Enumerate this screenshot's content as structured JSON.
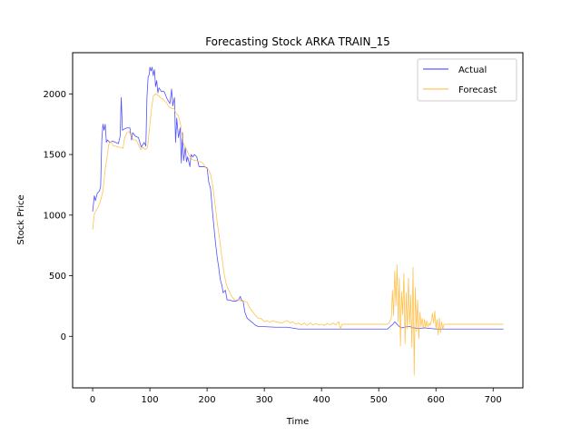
{
  "chart_data": {
    "type": "line",
    "title": "Forecasting Stock ARKA TRAIN_15",
    "xlabel": "Time",
    "ylabel": "Stock Price",
    "xlim": [
      -35,
      752
    ],
    "ylim": [
      -425,
      2340
    ],
    "xticks": [
      0,
      100,
      200,
      300,
      400,
      500,
      600,
      700
    ],
    "yticks": [
      0,
      500,
      1000,
      1500,
      2000
    ],
    "grid": false,
    "legend_position": "top-right",
    "series": [
      {
        "name": "Actual",
        "color": "#3333ff",
        "points": [
          [
            0,
            1030
          ],
          [
            3,
            1160
          ],
          [
            5,
            1120
          ],
          [
            8,
            1180
          ],
          [
            12,
            1200
          ],
          [
            14,
            1240
          ],
          [
            16,
            1620
          ],
          [
            18,
            1750
          ],
          [
            20,
            1700
          ],
          [
            22,
            1750
          ],
          [
            24,
            1600
          ],
          [
            26,
            1620
          ],
          [
            30,
            1600
          ],
          [
            35,
            1610
          ],
          [
            40,
            1600
          ],
          [
            45,
            1590
          ],
          [
            48,
            1650
          ],
          [
            50,
            1970
          ],
          [
            52,
            1700
          ],
          [
            55,
            1710
          ],
          [
            60,
            1720
          ],
          [
            65,
            1720
          ],
          [
            68,
            1620
          ],
          [
            70,
            1680
          ],
          [
            75,
            1650
          ],
          [
            80,
            1640
          ],
          [
            85,
            1560
          ],
          [
            90,
            1600
          ],
          [
            93,
            1570
          ],
          [
            95,
            1980
          ],
          [
            97,
            2140
          ],
          [
            99,
            2160
          ],
          [
            100,
            2220
          ],
          [
            102,
            2190
          ],
          [
            104,
            2220
          ],
          [
            106,
            2150
          ],
          [
            108,
            2200
          ],
          [
            110,
            2060
          ],
          [
            112,
            2110
          ],
          [
            114,
            2010
          ],
          [
            116,
            2050
          ],
          [
            120,
            2020
          ],
          [
            125,
            2020
          ],
          [
            130,
            1960
          ],
          [
            135,
            1920
          ],
          [
            138,
            2040
          ],
          [
            140,
            1900
          ],
          [
            143,
            1970
          ],
          [
            145,
            1600
          ],
          [
            147,
            1800
          ],
          [
            150,
            1640
          ],
          [
            153,
            1720
          ],
          [
            155,
            1430
          ],
          [
            157,
            1680
          ],
          [
            159,
            1450
          ],
          [
            162,
            1560
          ],
          [
            164,
            1440
          ],
          [
            166,
            1480
          ],
          [
            170,
            1400
          ],
          [
            172,
            1500
          ],
          [
            175,
            1480
          ],
          [
            178,
            1500
          ],
          [
            182,
            1480
          ],
          [
            186,
            1400
          ],
          [
            190,
            1400
          ],
          [
            195,
            1400
          ],
          [
            200,
            1390
          ],
          [
            203,
            1270
          ],
          [
            206,
            1220
          ],
          [
            210,
            1000
          ],
          [
            213,
            850
          ],
          [
            215,
            760
          ],
          [
            218,
            640
          ],
          [
            220,
            580
          ],
          [
            223,
            470
          ],
          [
            226,
            420
          ],
          [
            228,
            360
          ],
          [
            232,
            380
          ],
          [
            235,
            300
          ],
          [
            240,
            300
          ],
          [
            245,
            290
          ],
          [
            250,
            290
          ],
          [
            255,
            300
          ],
          [
            258,
            330
          ],
          [
            260,
            300
          ],
          [
            263,
            290
          ],
          [
            266,
            200
          ],
          [
            270,
            150
          ],
          [
            275,
            130
          ],
          [
            280,
            110
          ],
          [
            285,
            90
          ],
          [
            290,
            80
          ],
          [
            300,
            80
          ],
          [
            320,
            75
          ],
          [
            340,
            75
          ],
          [
            360,
            60
          ],
          [
            380,
            60
          ],
          [
            400,
            60
          ],
          [
            420,
            60
          ],
          [
            440,
            60
          ],
          [
            460,
            60
          ],
          [
            480,
            60
          ],
          [
            500,
            60
          ],
          [
            515,
            60
          ],
          [
            520,
            80
          ],
          [
            525,
            100
          ],
          [
            528,
            120
          ],
          [
            532,
            100
          ],
          [
            536,
            80
          ],
          [
            540,
            70
          ],
          [
            545,
            75
          ],
          [
            550,
            80
          ],
          [
            555,
            80
          ],
          [
            560,
            70
          ],
          [
            570,
            65
          ],
          [
            580,
            70
          ],
          [
            590,
            65
          ],
          [
            600,
            60
          ],
          [
            610,
            60
          ],
          [
            620,
            60
          ],
          [
            640,
            60
          ],
          [
            660,
            60
          ],
          [
            680,
            60
          ],
          [
            700,
            60
          ],
          [
            718,
            60
          ]
        ]
      },
      {
        "name": "Forecast",
        "color": "#ffb733",
        "points": [
          [
            0,
            880
          ],
          [
            3,
            1010
          ],
          [
            6,
            1040
          ],
          [
            10,
            1070
          ],
          [
            14,
            1120
          ],
          [
            18,
            1200
          ],
          [
            22,
            1380
          ],
          [
            26,
            1500
          ],
          [
            28,
            1580
          ],
          [
            32,
            1610
          ],
          [
            36,
            1570
          ],
          [
            40,
            1570
          ],
          [
            45,
            1560
          ],
          [
            50,
            1560
          ],
          [
            53,
            1550
          ],
          [
            56,
            1640
          ],
          [
            60,
            1680
          ],
          [
            64,
            1690
          ],
          [
            68,
            1640
          ],
          [
            72,
            1620
          ],
          [
            76,
            1620
          ],
          [
            80,
            1580
          ],
          [
            84,
            1540
          ],
          [
            88,
            1560
          ],
          [
            92,
            1540
          ],
          [
            96,
            1560
          ],
          [
            99,
            1700
          ],
          [
            103,
            1880
          ],
          [
            106,
            1980
          ],
          [
            110,
            2000
          ],
          [
            114,
            1990
          ],
          [
            118,
            1970
          ],
          [
            122,
            1960
          ],
          [
            126,
            1940
          ],
          [
            130,
            1920
          ],
          [
            134,
            1890
          ],
          [
            138,
            1880
          ],
          [
            142,
            1880
          ],
          [
            146,
            1840
          ],
          [
            150,
            1820
          ],
          [
            154,
            1740
          ],
          [
            158,
            1600
          ],
          [
            162,
            1560
          ],
          [
            166,
            1520
          ],
          [
            170,
            1480
          ],
          [
            174,
            1460
          ],
          [
            178,
            1450
          ],
          [
            182,
            1450
          ],
          [
            186,
            1440
          ],
          [
            190,
            1440
          ],
          [
            194,
            1420
          ],
          [
            198,
            1390
          ],
          [
            202,
            1380
          ],
          [
            206,
            1340
          ],
          [
            210,
            1240
          ],
          [
            214,
            1090
          ],
          [
            218,
            930
          ],
          [
            222,
            800
          ],
          [
            226,
            650
          ],
          [
            230,
            510
          ],
          [
            234,
            420
          ],
          [
            238,
            380
          ],
          [
            242,
            340
          ],
          [
            246,
            310
          ],
          [
            250,
            300
          ],
          [
            255,
            300
          ],
          [
            260,
            290
          ],
          [
            265,
            290
          ],
          [
            270,
            280
          ],
          [
            275,
            230
          ],
          [
            280,
            200
          ],
          [
            285,
            170
          ],
          [
            290,
            150
          ],
          [
            295,
            145
          ],
          [
            300,
            120
          ],
          [
            305,
            130
          ],
          [
            310,
            115
          ],
          [
            315,
            130
          ],
          [
            320,
            120
          ],
          [
            325,
            115
          ],
          [
            330,
            110
          ],
          [
            335,
            120
          ],
          [
            340,
            130
          ],
          [
            345,
            110
          ],
          [
            350,
            120
          ],
          [
            355,
            100
          ],
          [
            360,
            110
          ],
          [
            365,
            95
          ],
          [
            370,
            110
          ],
          [
            375,
            90
          ],
          [
            380,
            110
          ],
          [
            385,
            95
          ],
          [
            390,
            105
          ],
          [
            395,
            95
          ],
          [
            400,
            100
          ],
          [
            405,
            90
          ],
          [
            410,
            105
          ],
          [
            415,
            95
          ],
          [
            420,
            110
          ],
          [
            425,
            95
          ],
          [
            430,
            120
          ],
          [
            433,
            60
          ],
          [
            436,
            100
          ],
          [
            440,
            100
          ],
          [
            460,
            100
          ],
          [
            480,
            100
          ],
          [
            500,
            100
          ],
          [
            515,
            100
          ],
          [
            518,
            110
          ],
          [
            522,
            150
          ],
          [
            524,
            380
          ],
          [
            526,
            170
          ],
          [
            528,
            540
          ],
          [
            530,
            250
          ],
          [
            532,
            590
          ],
          [
            534,
            120
          ],
          [
            536,
            480
          ],
          [
            538,
            -80
          ],
          [
            540,
            370
          ],
          [
            542,
            180
          ],
          [
            544,
            520
          ],
          [
            546,
            -60
          ],
          [
            548,
            360
          ],
          [
            550,
            60
          ],
          [
            552,
            480
          ],
          [
            554,
            90
          ],
          [
            556,
            340
          ],
          [
            558,
            -90
          ],
          [
            560,
            570
          ],
          [
            562,
            -320
          ],
          [
            564,
            400
          ],
          [
            566,
            40
          ],
          [
            568,
            300
          ],
          [
            570,
            -20
          ],
          [
            572,
            200
          ],
          [
            574,
            80
          ],
          [
            576,
            150
          ],
          [
            578,
            60
          ],
          [
            580,
            140
          ],
          [
            582,
            70
          ],
          [
            584,
            130
          ],
          [
            586,
            80
          ],
          [
            588,
            110
          ],
          [
            590,
            90
          ],
          [
            592,
            130
          ],
          [
            594,
            190
          ],
          [
            596,
            110
          ],
          [
            598,
            210
          ],
          [
            600,
            60
          ],
          [
            602,
            140
          ],
          [
            604,
            10
          ],
          [
            606,
            150
          ],
          [
            608,
            30
          ],
          [
            610,
            120
          ],
          [
            612,
            60
          ],
          [
            614,
            100
          ],
          [
            618,
            100
          ],
          [
            640,
            100
          ],
          [
            660,
            100
          ],
          [
            680,
            100
          ],
          [
            700,
            100
          ],
          [
            718,
            100
          ]
        ]
      }
    ]
  }
}
